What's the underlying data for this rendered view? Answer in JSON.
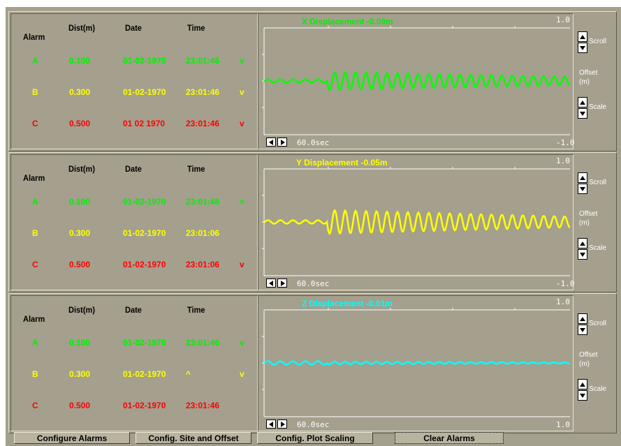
{
  "panels": [
    {
      "headers": {
        "alarm": "Alarm",
        "dist": "Dist(m)",
        "date": "Date",
        "time": "Time"
      },
      "rows": [
        {
          "letter": "A",
          "dist": "0.100",
          "date": "01-02-1970",
          "time": "23:01:46",
          "mark": "v",
          "color": "#00f000"
        },
        {
          "letter": "B",
          "dist": "0.300",
          "date": "01-02-1970",
          "time": "23:01:46",
          "mark": "v",
          "color": "#ffff00"
        },
        {
          "letter": "C",
          "dist": "0.500",
          "date": "01 02 1970",
          "time": "23:01:46",
          "mark": "v",
          "color": "#ff0000"
        }
      ],
      "graph": {
        "title": "X Displacement -0.09m",
        "title_color": "#00ee00",
        "trace_color": "#00ff00",
        "ymax": "1.0",
        "ymin": "-1.0",
        "duration": "60.0sec",
        "amp": 13
      }
    },
    {
      "headers": {
        "alarm": "Alarm",
        "dist": "Dist(m)",
        "date": "Date",
        "time": "Time"
      },
      "rows": [
        {
          "letter": "A",
          "dist": "0.100",
          "date": "01-02-1970",
          "time": "23:01:48",
          "mark": ">",
          "color": "#00f000"
        },
        {
          "letter": "B",
          "dist": "0.300",
          "date": "01-02-1970",
          "time": "23:01:06",
          "mark": "",
          "color": "#ffff00"
        },
        {
          "letter": "C",
          "dist": "0.500",
          "date": "01-02-1970",
          "time": "23:01:06",
          "mark": "v",
          "color": "#ff0000"
        }
      ],
      "graph": {
        "title": "Y Displacement -0.05m",
        "title_color": "#ffff00",
        "trace_color": "#ffff00",
        "ymax": "1.0",
        "ymin": "-1.0",
        "duration": "60.0sec",
        "amp": 17
      }
    },
    {
      "headers": {
        "alarm": "Alarm",
        "dist": "Dist(m)",
        "date": "Date",
        "time": "Time"
      },
      "rows": [
        {
          "letter": "A",
          "dist": "0.100",
          "date": "01-02-1970",
          "time": "23:01:46",
          "mark": "v",
          "color": "#00f000"
        },
        {
          "letter": "B",
          "dist": "0.300",
          "date": "01-02-1970",
          "time": "^",
          "mark": "v",
          "color": "#ffff00"
        },
        {
          "letter": "C",
          "dist": "0.500",
          "date": "01-02-1970",
          "time": "23:01:46",
          "mark": "",
          "color": "#ff0000"
        }
      ],
      "graph": {
        "title": "Z Displacement -0.01m",
        "title_color": "#00ffff",
        "trace_color": "#00ffff",
        "ymax": "1.0",
        "ymin": "1.0",
        "duration": "60.0sec",
        "amp": 2
      }
    }
  ],
  "controls": {
    "scroll": "Scroll",
    "offset": "Offset",
    "offset_unit": "(m)",
    "scale": "Scale"
  },
  "footer": {
    "configure_alarms": "Configure Alarms",
    "config_site": "Config. Site and Offset",
    "config_plot": "Config. Plot Scaling",
    "clear_alarms": "Clear Alarms"
  }
}
